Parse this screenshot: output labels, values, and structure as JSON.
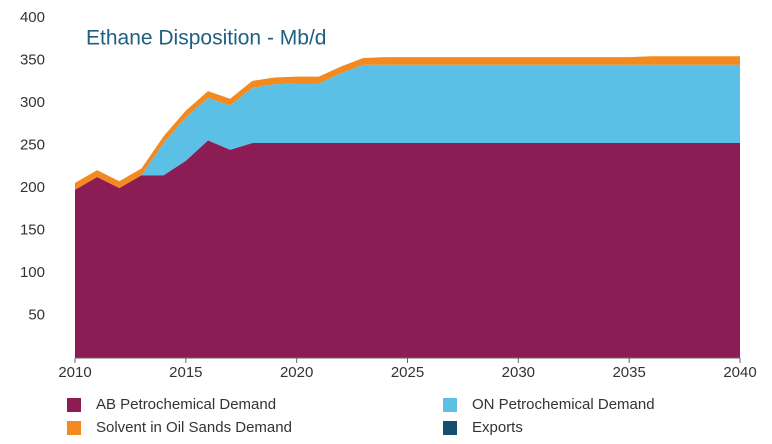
{
  "chart_data": {
    "type": "stacked_area",
    "title": "Ethane Disposition - Mb/d",
    "x": [
      2010,
      2011,
      2012,
      2013,
      2014,
      2015,
      2016,
      2017,
      2018,
      2019,
      2020,
      2021,
      2022,
      2023,
      2024,
      2025,
      2026,
      2027,
      2028,
      2029,
      2030,
      2031,
      2032,
      2033,
      2034,
      2035,
      2036,
      2037,
      2038,
      2039,
      2040
    ],
    "series": [
      {
        "name": "AB Petrochemical Demand",
        "color": "#8b1c54",
        "values": [
          198,
          213,
          200,
          215,
          215,
          232,
          256,
          245,
          253,
          253,
          253,
          253,
          253,
          253,
          253,
          253,
          253,
          253,
          253,
          253,
          253,
          253,
          253,
          253,
          253,
          253,
          253,
          253,
          253,
          253,
          253
        ]
      },
      {
        "name": "ON Petrochemical Demand",
        "color": "#5bbfe6",
        "values": [
          0,
          0,
          0,
          0,
          38,
          51,
          50,
          52,
          65,
          69,
          70,
          70,
          82,
          92,
          92,
          92,
          92,
          92,
          92,
          92,
          92,
          92,
          92,
          92,
          92,
          92,
          92,
          92,
          92,
          92,
          92
        ]
      },
      {
        "name": "Solvent in Oil Sands Demand",
        "color": "#f28a20",
        "values": [
          8,
          8,
          8,
          8,
          8,
          8,
          8,
          8,
          8,
          8,
          8,
          8,
          8,
          8,
          9,
          9,
          9,
          9,
          9,
          9,
          9,
          9,
          9,
          9,
          9,
          9,
          10,
          10,
          10,
          10,
          10
        ]
      },
      {
        "name": "Exports",
        "color": "#164e6e",
        "values": [
          0,
          0,
          0,
          0,
          0,
          0,
          0,
          0,
          0,
          0,
          0,
          0,
          0,
          0,
          0,
          0,
          0,
          0,
          0,
          0,
          0,
          0,
          0,
          0,
          0,
          0,
          0,
          0,
          0,
          0,
          0
        ]
      }
    ],
    "xlim": [
      2010,
      2040
    ],
    "xticks": [
      2010,
      2015,
      2020,
      2025,
      2030,
      2035,
      2040
    ],
    "ylim": [
      0,
      400
    ],
    "yticks": [
      50,
      100,
      150,
      200,
      250,
      300,
      350,
      400
    ],
    "grid": false
  }
}
